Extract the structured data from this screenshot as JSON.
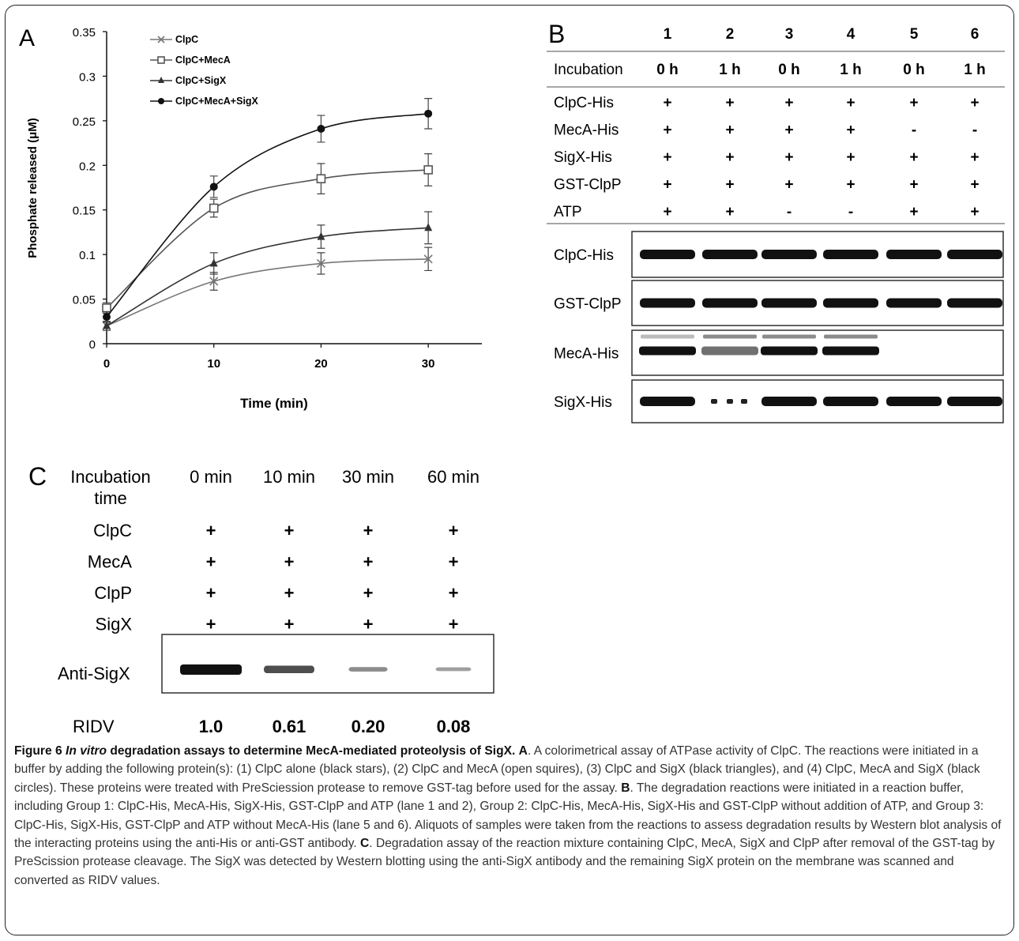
{
  "panel_a": {
    "letter": "A",
    "chart_data": {
      "type": "line",
      "x": [
        0,
        10,
        20,
        30
      ],
      "xlabel": "Time (min)",
      "ylabel": "Phosphate released (μM)",
      "xlim": [
        0,
        35
      ],
      "ylim": [
        0,
        0.35
      ],
      "x_ticks": [
        "0",
        "10",
        "20",
        "30"
      ],
      "y_ticks": [
        "0",
        "0.05",
        "0.1",
        "0.15",
        "0.2",
        "0.25",
        "0.3",
        "0.35"
      ],
      "legend_position": "top-left",
      "grid": false,
      "series": [
        {
          "name": "ClpC",
          "marker": "x",
          "color": "#777777",
          "values": [
            0.02,
            0.07,
            0.09,
            0.095
          ],
          "errors": [
            0.005,
            0.01,
            0.012,
            0.013
          ]
        },
        {
          "name": "ClpC+MecA",
          "marker": "open-square",
          "color": "#555555",
          "values": [
            0.04,
            0.152,
            0.185,
            0.195
          ],
          "errors": [
            0.006,
            0.01,
            0.017,
            0.018
          ]
        },
        {
          "name": "ClpC+SigX",
          "marker": "triangle",
          "color": "#333333",
          "values": [
            0.02,
            0.09,
            0.12,
            0.13
          ],
          "errors": [
            0.005,
            0.012,
            0.013,
            0.018
          ]
        },
        {
          "name": "ClpC+MecA+SigX",
          "marker": "filled-circle",
          "color": "#111111",
          "values": [
            0.03,
            0.176,
            0.241,
            0.258
          ],
          "errors": [
            0.006,
            0.012,
            0.015,
            0.017
          ]
        }
      ]
    }
  },
  "panel_b": {
    "letter": "B",
    "lanes": [
      "1",
      "2",
      "3",
      "4",
      "5",
      "6"
    ],
    "incubation_label": "Incubation",
    "incubation": [
      "0 h",
      "1 h",
      "0 h",
      "1 h",
      "0 h",
      "1 h"
    ],
    "rows": [
      {
        "label": "ClpC-His",
        "values": [
          "+",
          "+",
          "+",
          "+",
          "+",
          "+"
        ]
      },
      {
        "label": "MecA-His",
        "values": [
          "+",
          "+",
          "+",
          "+",
          "-",
          "-"
        ]
      },
      {
        "label": "SigX-His",
        "values": [
          "+",
          "+",
          "+",
          "+",
          "+",
          "+"
        ]
      },
      {
        "label": "GST-ClpP",
        "values": [
          "+",
          "+",
          "+",
          "+",
          "+",
          "+"
        ]
      },
      {
        "label": "ATP",
        "values": [
          "+",
          "+",
          "-",
          "-",
          "+",
          "+"
        ]
      }
    ],
    "blots": [
      {
        "label": "ClpC-His",
        "intensity": [
          1,
          1,
          1,
          1,
          1,
          1
        ]
      },
      {
        "label": "GST-ClpP",
        "intensity": [
          1,
          1,
          1,
          1,
          1,
          1
        ]
      },
      {
        "label": "MecA-His",
        "intensity": [
          1,
          0.6,
          1,
          1,
          0,
          0
        ]
      },
      {
        "label": "SigX-His",
        "intensity": [
          1,
          0.3,
          1,
          1,
          1,
          1
        ]
      }
    ]
  },
  "panel_c": {
    "letter": "C",
    "incubation_label_1": "Incubation",
    "incubation_label_2": "time",
    "times": [
      "0 min",
      "10 min",
      "30 min",
      "60 min"
    ],
    "rows": [
      {
        "label": "ClpC",
        "values": [
          "+",
          "+",
          "+",
          "+"
        ]
      },
      {
        "label": "MecA",
        "values": [
          "+",
          "+",
          "+",
          "+"
        ]
      },
      {
        "label": "ClpP",
        "values": [
          "+",
          "+",
          "+",
          "+"
        ]
      },
      {
        "label": "SigX",
        "values": [
          "+",
          "+",
          "+",
          "+"
        ]
      }
    ],
    "blot_label": "Anti-SigX",
    "ridv_label": "RIDV",
    "ridv_values": [
      "1.0",
      "0.61",
      "0.20",
      "0.08"
    ],
    "band_intensity": [
      1.0,
      0.61,
      0.2,
      0.08
    ]
  },
  "caption": {
    "fig_label": "Figure 6",
    "title_italic": "In vitro",
    "title_rest": "degradation assays to determine MecA-mediated proteolysis of SigX.",
    "a_label": "A",
    "a_text": ". A colorimetrical assay of ATPase activity of ClpC. The reactions were initiated in a buffer by adding the following protein(s): (1) ClpC alone (black stars), (2) ClpC and MecA (open squires), (3) ClpC and SigX (black triangles), and (4) ClpC, MecA and SigX (black circles). These proteins were treated with PreSciession protease to remove GST-tag before used for the assay.",
    "b_label": "B",
    "b_text": ". The degradation reactions were initiated in a reaction buffer, including Group 1: ClpC-His, MecA-His, SigX-His, GST-ClpP and ATP (lane 1 and 2), Group 2: ClpC-His, MecA-His, SigX-His and GST-ClpP without addition of ATP, and Group 3: ClpC-His, SigX-His, GST-ClpP and ATP without MecA-His (lane 5 and 6). Aliquots of samples were taken from the reactions to assess degradation results by Western blot analysis of the interacting proteins using the anti-His or anti-GST antibody.",
    "c_label": "C",
    "c_text": ". Degradation assay of the reaction mixture containing ClpC, MecA, SigX and ClpP after removal of the GST-tag by PreScission protease cleavage. The SigX was detected by Western blotting using the anti-SigX antibody and the remaining SigX protein on the membrane was scanned and converted as RIDV values."
  }
}
